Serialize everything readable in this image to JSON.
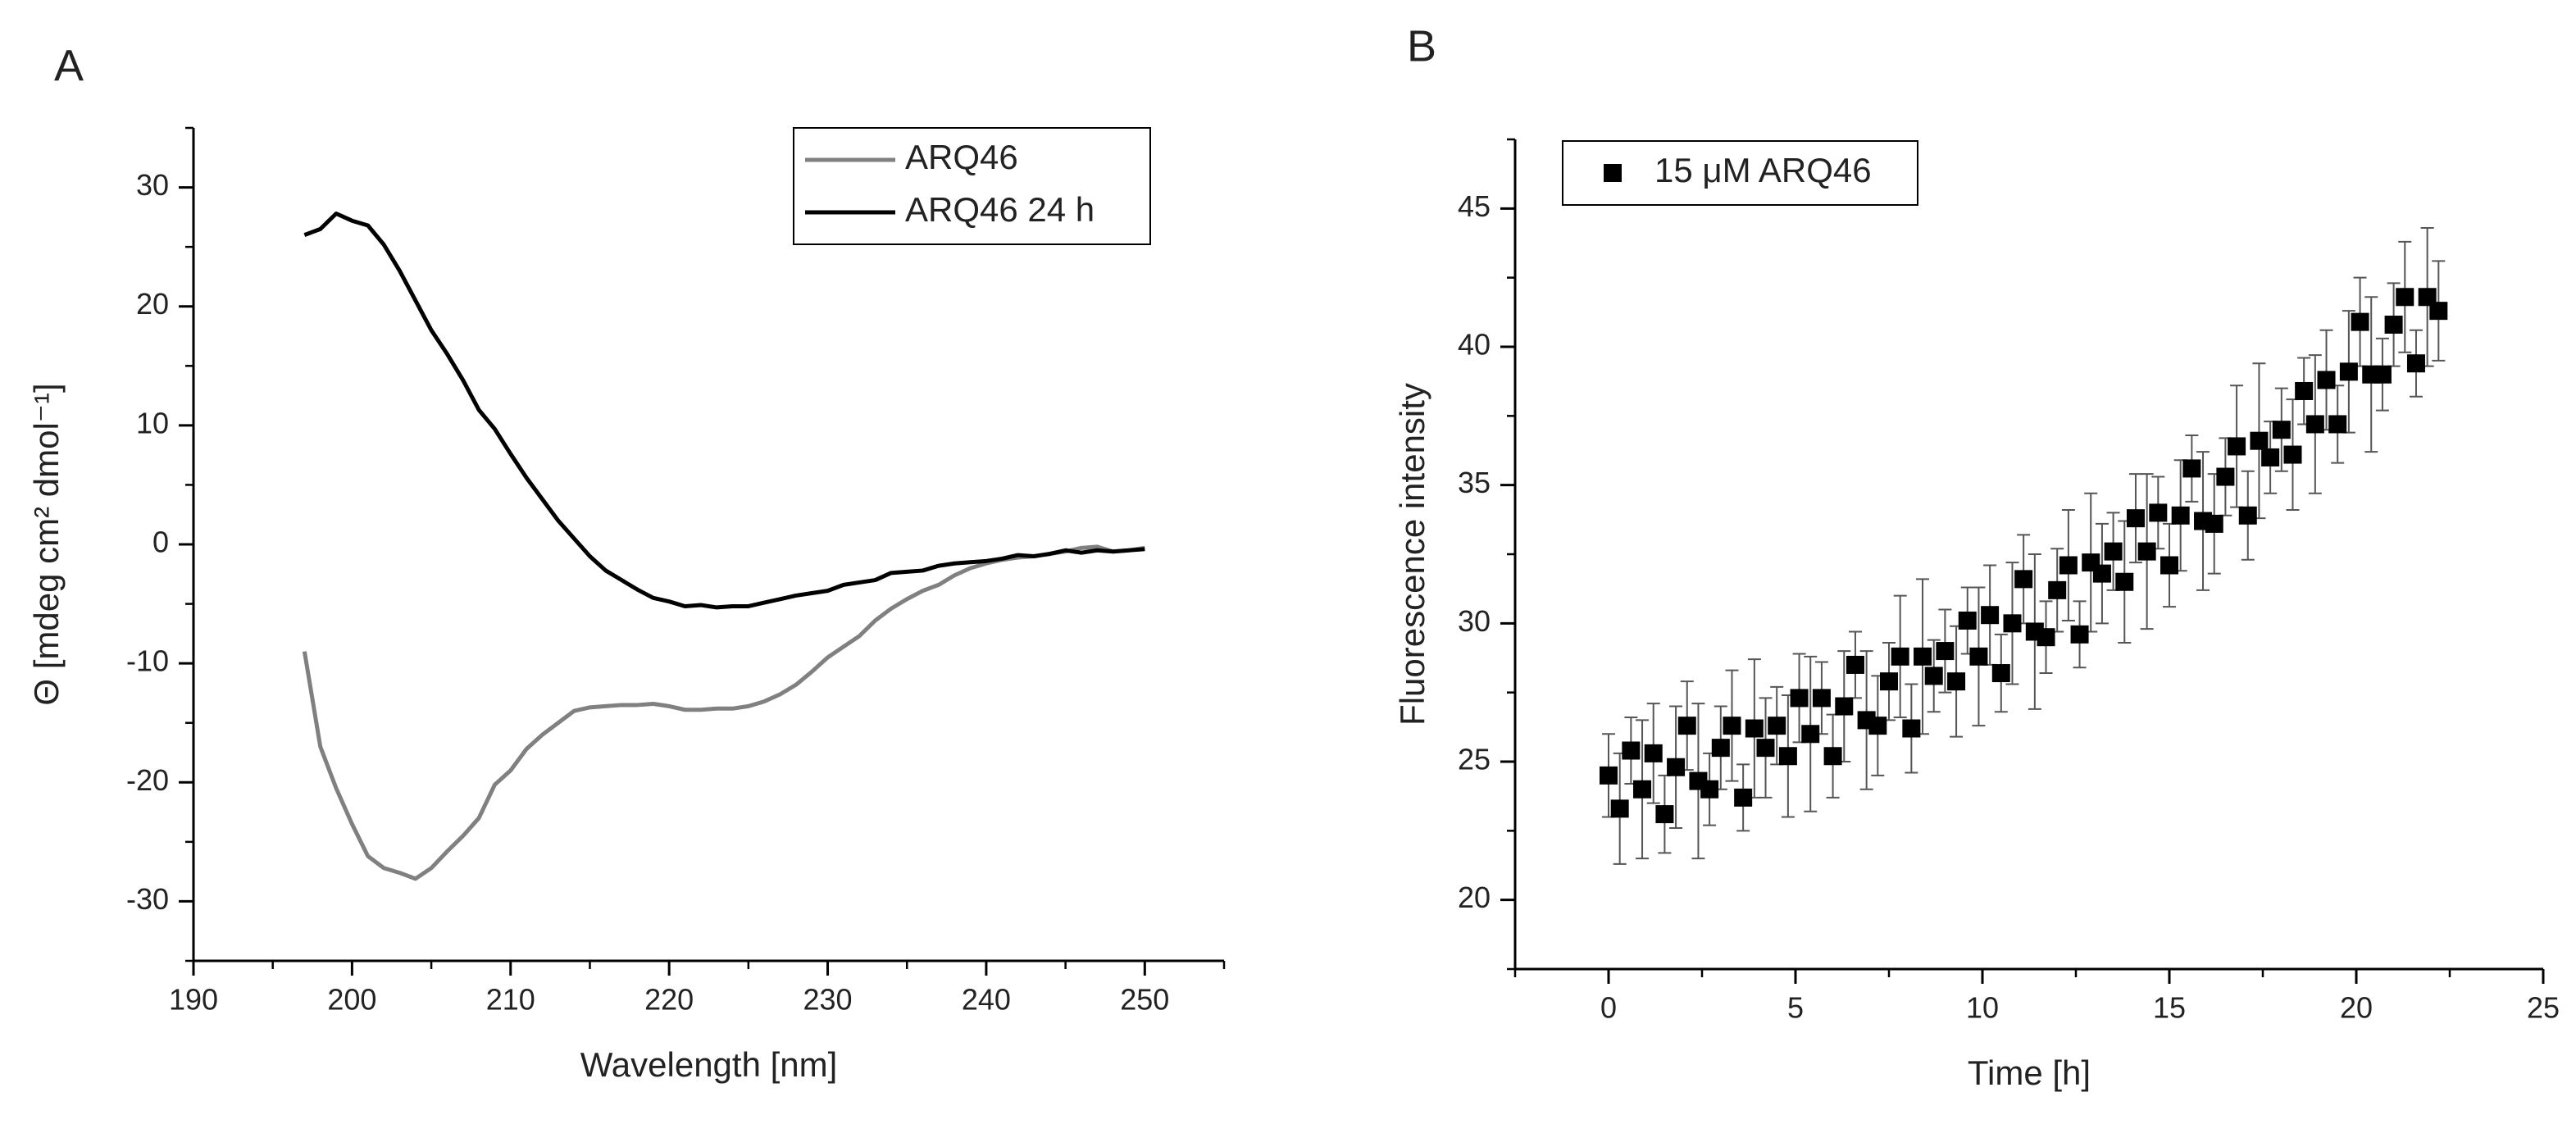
{
  "chart_data": [
    {
      "type": "line",
      "label": "A",
      "xlabel": "Wavelength [nm]",
      "ylabel": "Θ [mdeg cm² dmol⁻¹]",
      "xlim": [
        190,
        255
      ],
      "xticks": [
        190,
        200,
        210,
        220,
        230,
        240,
        250
      ],
      "ylim": [
        -35,
        35
      ],
      "yticks": [
        -30,
        -20,
        -10,
        0,
        10,
        20,
        30
      ],
      "legend": "upper right",
      "x": [
        197,
        198,
        199,
        200,
        201,
        202,
        203,
        204,
        205,
        206,
        207,
        208,
        209,
        210,
        211,
        212,
        213,
        214,
        215,
        216,
        217,
        218,
        219,
        220,
        221,
        222,
        223,
        224,
        225,
        226,
        227,
        228,
        229,
        230,
        231,
        232,
        233,
        234,
        235,
        236,
        237,
        238,
        239,
        240,
        241,
        242,
        243,
        244,
        245,
        246,
        247,
        248,
        249,
        250
      ],
      "series": [
        {
          "name": "ARQ46",
          "color": "#808080",
          "values": [
            -9,
            -17,
            -20.5,
            -23.5,
            -26.2,
            -27.2,
            -27.6,
            -28.1,
            -27.2,
            -25.8,
            -24.5,
            -23,
            -20.2,
            -19,
            -17.2,
            -16,
            -15,
            -14,
            -13.7,
            -13.6,
            -13.5,
            -13.5,
            -13.4,
            -13.6,
            -13.9,
            -13.9,
            -13.8,
            -13.8,
            -13.6,
            -13.2,
            -12.6,
            -11.8,
            -10.7,
            -9.5,
            -8.6,
            -7.7,
            -6.4,
            -5.4,
            -4.6,
            -3.9,
            -3.4,
            -2.6,
            -2.0,
            -1.6,
            -1.3,
            -1.1,
            -1.0,
            -0.8,
            -0.6,
            -0.3,
            -0.2,
            -0.6,
            -0.5,
            -0.3
          ]
        },
        {
          "name": "ARQ46 24 h",
          "color": "#000000",
          "values": [
            26,
            26.5,
            27.8,
            27.2,
            26.8,
            25.2,
            23,
            20.5,
            18,
            16,
            13.8,
            11.3,
            9.7,
            7.6,
            5.6,
            3.8,
            2,
            0.5,
            -1,
            -2.2,
            -3,
            -3.8,
            -4.5,
            -4.8,
            -5.2,
            -5.1,
            -5.3,
            -5.2,
            -5.2,
            -4.9,
            -4.6,
            -4.3,
            -4.1,
            -3.9,
            -3.4,
            -3.2,
            -3.0,
            -2.4,
            -2.3,
            -2.2,
            -1.8,
            -1.6,
            -1.5,
            -1.4,
            -1.2,
            -0.9,
            -1.0,
            -0.8,
            -0.5,
            -0.7,
            -0.5,
            -0.6,
            -0.5,
            -0.4
          ]
        }
      ]
    },
    {
      "type": "scatter",
      "label": "B",
      "xlabel": "Time [h]",
      "ylabel": "Fluorescence intensity",
      "xlim": [
        -2.5,
        25
      ],
      "xticks": [
        0,
        5,
        10,
        15,
        20,
        25
      ],
      "ylim": [
        17.5,
        47.5
      ],
      "yticks": [
        20,
        25,
        30,
        35,
        40,
        45
      ],
      "legend": "upper left",
      "x": [
        0,
        0.3,
        0.6,
        0.9,
        1.2,
        1.5,
        1.8,
        2.1,
        2.4,
        2.7,
        3,
        3.3,
        3.6,
        3.9,
        4.2,
        4.5,
        4.8,
        5.1,
        5.4,
        5.7,
        6,
        6.3,
        6.6,
        6.9,
        7.2,
        7.5,
        7.8,
        8.1,
        8.4,
        8.7,
        9,
        9.3,
        9.6,
        9.9,
        10.2,
        10.5,
        10.8,
        11.1,
        11.4,
        11.7,
        12,
        12.3,
        12.6,
        12.9,
        13.2,
        13.5,
        13.8,
        14.1,
        14.4,
        14.7,
        15,
        15.3,
        15.6,
        15.9,
        16.2,
        16.5,
        16.8,
        17.1,
        17.4,
        17.7,
        18,
        18.3,
        18.6,
        18.9,
        19.2,
        19.5,
        19.8,
        20.1,
        20.4,
        20.7,
        21,
        21.3,
        21.6,
        21.9,
        22.2
      ],
      "series": [
        {
          "name": "15 μM ARQ46",
          "color": "#000000",
          "values": [
            24.5,
            23.3,
            25.4,
            24.0,
            25.3,
            23.1,
            24.8,
            26.3,
            24.3,
            24.0,
            25.5,
            26.3,
            23.7,
            26.2,
            25.5,
            26.3,
            25.2,
            27.3,
            26.0,
            27.3,
            25.2,
            27.0,
            28.5,
            26.5,
            26.3,
            27.9,
            28.8,
            26.2,
            28.8,
            28.1,
            29.0,
            27.9,
            30.1,
            28.8,
            30.3,
            28.2,
            30.0,
            31.6,
            29.7,
            29.5,
            31.2,
            32.1,
            29.6,
            32.2,
            31.8,
            32.6,
            31.5,
            33.8,
            32.6,
            34.0,
            32.1,
            33.9,
            35.6,
            33.7,
            33.6,
            35.3,
            36.4,
            33.9,
            36.6,
            36.0,
            37.0,
            36.1,
            38.4,
            37.2,
            38.8,
            37.2,
            39.1,
            40.9,
            39.0,
            39.0,
            40.8,
            41.8,
            39.4,
            41.8,
            41.3
          ],
          "errors": [
            1.5,
            2.0,
            1.2,
            2.5,
            1.8,
            1.4,
            2.2,
            1.6,
            2.8,
            1.3,
            1.5,
            2.0,
            1.2,
            2.5,
            1.8,
            1.4,
            2.2,
            1.6,
            2.8,
            1.3,
            1.5,
            2.0,
            1.2,
            2.5,
            1.8,
            1.4,
            2.2,
            1.6,
            2.8,
            1.3,
            1.5,
            2.0,
            1.2,
            2.5,
            1.8,
            1.4,
            2.2,
            1.6,
            2.8,
            1.3,
            1.5,
            2.0,
            1.2,
            2.5,
            1.8,
            1.4,
            2.2,
            1.6,
            2.8,
            1.3,
            1.5,
            2.0,
            1.2,
            2.5,
            1.8,
            1.4,
            2.2,
            1.6,
            2.8,
            1.3,
            1.5,
            2.0,
            1.2,
            2.5,
            1.8,
            1.4,
            2.2,
            1.6,
            2.8,
            1.3,
            1.5,
            2.0,
            1.2,
            2.5,
            1.8
          ]
        }
      ]
    }
  ]
}
